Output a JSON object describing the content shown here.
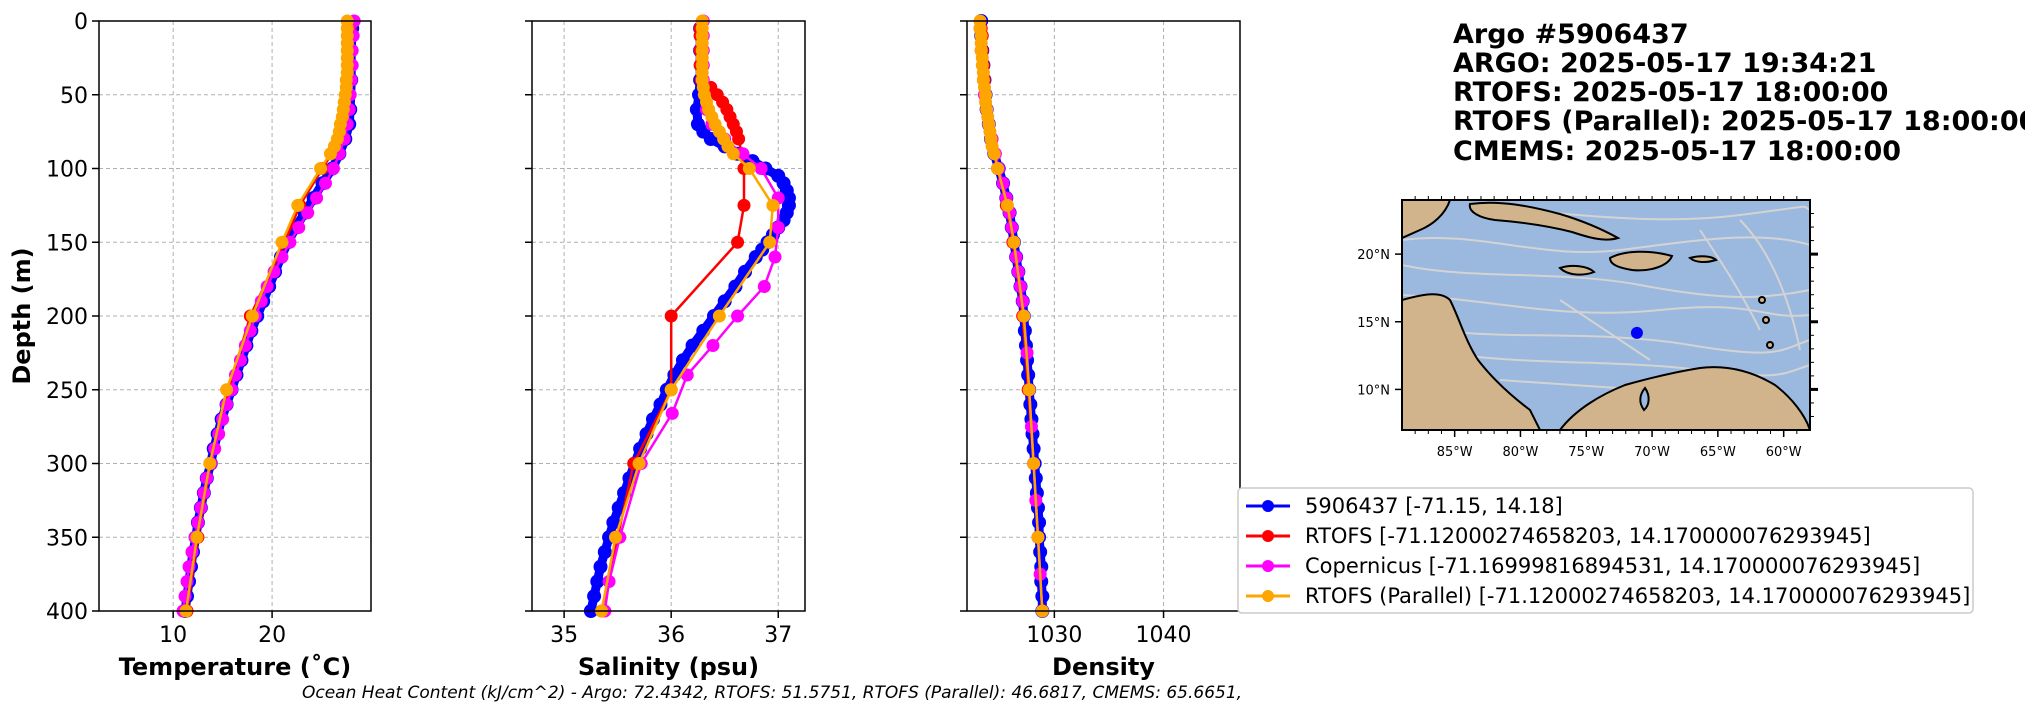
{
  "title_lines": [
    "Argo #5906437",
    "ARGO:  2025-05-17 19:34:21",
    "RTOFS: 2025-05-17 18:00:00",
    "RTOFS (Parallel): 2025-05-17 18:00:00",
    "CMEMS: 2025-05-17 18:00:00"
  ],
  "footer": "Ocean Heat Content (kJ/cm^2) - Argo: 72.4342,  RTOFS: 51.5751,  RTOFS (Parallel): 46.6817,  CMEMS: 65.6651,",
  "colors": {
    "argo": "#0000ff",
    "rtofs": "#ff0000",
    "copernicus": "#ff00ff",
    "rtofs_parallel": "#ffa500",
    "grid": "#b0b0b0",
    "ocean": "#9bb8df",
    "land": "#d2b48c",
    "stream": "#d3d3d3"
  },
  "legend": [
    {
      "label": "5906437 [-71.15, 14.18]",
      "series": "argo"
    },
    {
      "label": "RTOFS [-71.12000274658203, 14.170000076293945]",
      "series": "rtofs"
    },
    {
      "label": "Copernicus [-71.16999816894531, 14.170000076293945]",
      "series": "copernicus"
    },
    {
      "label": "RTOFS (Parallel) [-71.12000274658203, 14.170000076293945]",
      "series": "rtofs_parallel"
    }
  ],
  "chart_data": [
    {
      "type": "line",
      "xlabel": "Temperature (˚C)",
      "ylabel": "Depth (m)",
      "xlim": [
        2.5,
        30
      ],
      "ylim": [
        400,
        0
      ],
      "xticks": [
        10,
        20
      ],
      "yticks": [
        0,
        50,
        100,
        150,
        200,
        250,
        300,
        350,
        400
      ],
      "grid": true,
      "series": [
        {
          "key": "argo",
          "depth": [
            5,
            20,
            40,
            60,
            70,
            80,
            90,
            100,
            110,
            120,
            130,
            140,
            150,
            160,
            170,
            180,
            190,
            200,
            210,
            220,
            230,
            240,
            250,
            260,
            270,
            280,
            290,
            300,
            310,
            320,
            330,
            340,
            350,
            360,
            370,
            380,
            390,
            400
          ],
          "values": [
            28.1,
            28.0,
            28.0,
            27.9,
            27.8,
            27.4,
            26.8,
            26.1,
            25.1,
            24.2,
            23.3,
            22.4,
            21.6,
            20.9,
            20.3,
            19.7,
            19.1,
            18.5,
            17.9,
            17.4,
            16.9,
            16.4,
            15.9,
            15.4,
            14.9,
            14.5,
            14.1,
            13.8,
            13.4,
            13.1,
            12.8,
            12.5,
            12.3,
            12.0,
            11.8,
            11.6,
            11.4,
            11.2
          ]
        },
        {
          "key": "rtofs",
          "depth": [
            5,
            10,
            20,
            30,
            40,
            50,
            60,
            70,
            80,
            90,
            100,
            125,
            150,
            200,
            250,
            300,
            350,
            400
          ],
          "values": [
            27.9,
            27.9,
            27.9,
            27.9,
            27.9,
            27.8,
            27.6,
            27.3,
            26.8,
            26.0,
            25.1,
            22.8,
            21.3,
            17.8,
            15.6,
            13.8,
            12.5,
            11.4
          ]
        },
        {
          "key": "copernicus",
          "depth": [
            0,
            10,
            20,
            30,
            40,
            50,
            60,
            70,
            80,
            90,
            100,
            110,
            120,
            130,
            140,
            150,
            160,
            170,
            180,
            190,
            200,
            210,
            220,
            230,
            240,
            250,
            260,
            270,
            280,
            290,
            300,
            310,
            320,
            330,
            340,
            350,
            360,
            370,
            380,
            390,
            400
          ],
          "values": [
            28.3,
            28.2,
            28.1,
            28.1,
            28.0,
            27.9,
            27.8,
            27.6,
            27.3,
            26.8,
            26.2,
            25.4,
            24.5,
            23.6,
            22.7,
            21.8,
            21.0,
            20.2,
            19.5,
            18.9,
            18.3,
            17.8,
            17.3,
            16.8,
            16.3,
            15.9,
            15.4,
            15.0,
            14.6,
            14.2,
            13.8,
            13.4,
            13.1,
            12.8,
            12.5,
            12.2,
            11.9,
            11.6,
            11.4,
            11.2,
            11.0
          ]
        },
        {
          "key": "rtofs_parallel",
          "depth": [
            0,
            5,
            10,
            15,
            20,
            25,
            30,
            35,
            40,
            45,
            50,
            55,
            60,
            65,
            70,
            75,
            80,
            85,
            90,
            100,
            125,
            150,
            200,
            250,
            300,
            350,
            400
          ],
          "values": [
            27.6,
            27.6,
            27.6,
            27.6,
            27.6,
            27.6,
            27.6,
            27.6,
            27.5,
            27.5,
            27.4,
            27.3,
            27.2,
            27.1,
            26.9,
            26.8,
            26.6,
            26.3,
            25.9,
            24.9,
            22.6,
            21.0,
            18.0,
            15.4,
            13.7,
            12.4,
            11.3
          ]
        }
      ]
    },
    {
      "type": "line",
      "xlabel": "Salinity (psu)",
      "ylabel": "",
      "xlim": [
        34.7,
        37.25
      ],
      "ylim": [
        400,
        0
      ],
      "xticks": [
        35,
        36,
        37
      ],
      "yticks": [
        0,
        50,
        100,
        150,
        200,
        250,
        300,
        350,
        400
      ],
      "grid": true,
      "series": [
        {
          "key": "argo",
          "depth": [
            5,
            20,
            40,
            50,
            60,
            70,
            75,
            80,
            85,
            90,
            95,
            100,
            105,
            110,
            115,
            120,
            125,
            130,
            135,
            140,
            145,
            150,
            155,
            160,
            170,
            180,
            190,
            200,
            210,
            220,
            230,
            240,
            250,
            260,
            270,
            280,
            290,
            300,
            310,
            320,
            330,
            340,
            350,
            360,
            370,
            380,
            390,
            400
          ],
          "values": [
            36.27,
            36.27,
            36.27,
            36.26,
            36.24,
            36.25,
            36.3,
            36.37,
            36.5,
            36.62,
            36.76,
            36.88,
            37.0,
            37.05,
            37.08,
            37.1,
            37.1,
            37.08,
            37.05,
            37.0,
            36.95,
            36.9,
            36.85,
            36.79,
            36.69,
            36.6,
            36.5,
            36.4,
            36.3,
            36.2,
            36.11,
            36.03,
            35.96,
            35.9,
            35.83,
            35.77,
            35.71,
            35.66,
            35.61,
            35.56,
            35.51,
            35.46,
            35.42,
            35.38,
            35.34,
            35.31,
            35.28,
            35.25
          ]
        },
        {
          "key": "rtofs",
          "depth": [
            5,
            10,
            20,
            30,
            40,
            45,
            50,
            55,
            60,
            65,
            70,
            75,
            80,
            90,
            100,
            125,
            150,
            200,
            250,
            300,
            350,
            400
          ],
          "values": [
            36.27,
            36.27,
            36.27,
            36.27,
            36.28,
            36.37,
            36.43,
            36.48,
            36.52,
            36.55,
            36.58,
            36.61,
            36.63,
            36.66,
            36.68,
            36.68,
            36.62,
            36.0,
            36.0,
            35.65,
            35.5,
            35.35
          ]
        },
        {
          "key": "copernicus",
          "depth": [
            0,
            10,
            20,
            30,
            40,
            50,
            60,
            70,
            80,
            90,
            100,
            120,
            140,
            160,
            180,
            200,
            220,
            240,
            266,
            300,
            350,
            380,
            400
          ],
          "values": [
            36.3,
            36.3,
            36.3,
            36.3,
            36.3,
            36.31,
            36.33,
            36.38,
            36.5,
            36.67,
            36.84,
            37.0,
            37.0,
            36.97,
            36.87,
            36.62,
            36.39,
            36.15,
            36.01,
            35.72,
            35.52,
            35.42,
            35.38
          ]
        },
        {
          "key": "rtofs_parallel",
          "depth": [
            0,
            5,
            10,
            15,
            20,
            25,
            30,
            35,
            40,
            45,
            50,
            55,
            60,
            65,
            70,
            75,
            80,
            85,
            90,
            100,
            125,
            150,
            200,
            250,
            300,
            350,
            400
          ],
          "values": [
            36.29,
            36.29,
            36.29,
            36.29,
            36.29,
            36.29,
            36.29,
            36.29,
            36.29,
            36.3,
            36.31,
            36.33,
            36.35,
            36.38,
            36.41,
            36.45,
            36.49,
            36.53,
            36.58,
            36.73,
            36.95,
            36.92,
            36.45,
            36.0,
            35.7,
            35.48,
            35.35
          ]
        }
      ]
    },
    {
      "type": "line",
      "xlabel": "Density",
      "ylabel": "",
      "xlim": [
        1022,
        1047
      ],
      "ylim": [
        400,
        0
      ],
      "xticks": [
        1030,
        1040
      ],
      "yticks": [
        0,
        50,
        100,
        150,
        200,
        250,
        300,
        350,
        400
      ],
      "grid": true,
      "series": [
        {
          "key": "argo",
          "depth": [
            0,
            10,
            20,
            30,
            40,
            50,
            60,
            70,
            80,
            90,
            100,
            110,
            120,
            130,
            140,
            150,
            160,
            170,
            180,
            190,
            200,
            210,
            220,
            230,
            240,
            250,
            260,
            270,
            280,
            290,
            300,
            310,
            320,
            330,
            340,
            350,
            360,
            370,
            380,
            390,
            400
          ],
          "values": [
            1023.3,
            1023.3,
            1023.4,
            1023.5,
            1023.6,
            1023.7,
            1023.8,
            1024.0,
            1024.2,
            1024.5,
            1024.9,
            1025.3,
            1025.6,
            1025.9,
            1026.1,
            1026.3,
            1026.5,
            1026.7,
            1026.9,
            1027.1,
            1027.2,
            1027.3,
            1027.4,
            1027.5,
            1027.6,
            1027.7,
            1027.8,
            1027.9,
            1028.0,
            1028.1,
            1028.2,
            1028.3,
            1028.4,
            1028.5,
            1028.6,
            1028.6,
            1028.7,
            1028.8,
            1028.8,
            1028.9,
            1028.9
          ]
        },
        {
          "key": "rtofs",
          "depth": [
            5,
            10,
            20,
            30,
            40,
            50,
            60,
            70,
            80,
            90,
            100,
            125,
            150,
            200,
            250,
            300,
            350,
            400
          ],
          "values": [
            1023.3,
            1023.4,
            1023.4,
            1023.5,
            1023.6,
            1023.7,
            1023.8,
            1024.0,
            1024.2,
            1024.5,
            1024.8,
            1025.6,
            1026.2,
            1027.1,
            1027.6,
            1028.1,
            1028.5,
            1028.9
          ]
        },
        {
          "key": "copernicus",
          "depth": [
            5,
            20,
            40,
            50,
            60,
            70,
            80,
            90,
            100,
            110,
            120,
            130,
            140,
            150,
            160,
            170,
            180,
            190,
            200,
            225,
            250,
            275,
            300,
            325,
            350,
            375,
            400
          ],
          "values": [
            1023.2,
            1023.3,
            1023.5,
            1023.6,
            1023.8,
            1024.0,
            1024.3,
            1024.6,
            1024.9,
            1025.3,
            1025.6,
            1025.9,
            1026.1,
            1026.3,
            1026.5,
            1026.7,
            1026.9,
            1027.1,
            1027.2,
            1027.5,
            1027.7,
            1027.9,
            1028.1,
            1028.3,
            1028.5,
            1028.7,
            1028.9
          ]
        },
        {
          "key": "rtofs_parallel",
          "depth": [
            0,
            5,
            10,
            15,
            20,
            25,
            30,
            35,
            40,
            45,
            50,
            55,
            60,
            65,
            70,
            75,
            80,
            85,
            90,
            100,
            125,
            150,
            200,
            250,
            300,
            350,
            400
          ],
          "values": [
            1023.2,
            1023.2,
            1023.3,
            1023.3,
            1023.3,
            1023.4,
            1023.4,
            1023.5,
            1023.5,
            1023.6,
            1023.7,
            1023.7,
            1023.8,
            1023.9,
            1024.0,
            1024.1,
            1024.2,
            1024.3,
            1024.5,
            1024.8,
            1025.7,
            1026.3,
            1027.2,
            1027.7,
            1028.1,
            1028.5,
            1028.9
          ]
        }
      ]
    }
  ],
  "map": {
    "lon_ticks": [
      "85°W",
      "80°W",
      "75°W",
      "70°W",
      "65°W",
      "60°W"
    ],
    "lat_ticks": [
      "20°N",
      "15°N",
      "10°N"
    ],
    "lon_range": [
      -89,
      -58
    ],
    "lat_range": [
      7,
      24
    ],
    "lon_values": [
      -85,
      -80,
      -75,
      -70,
      -65,
      -60
    ],
    "lat_values": [
      20,
      15,
      10
    ],
    "float_position": [
      -71.15,
      14.18
    ]
  }
}
